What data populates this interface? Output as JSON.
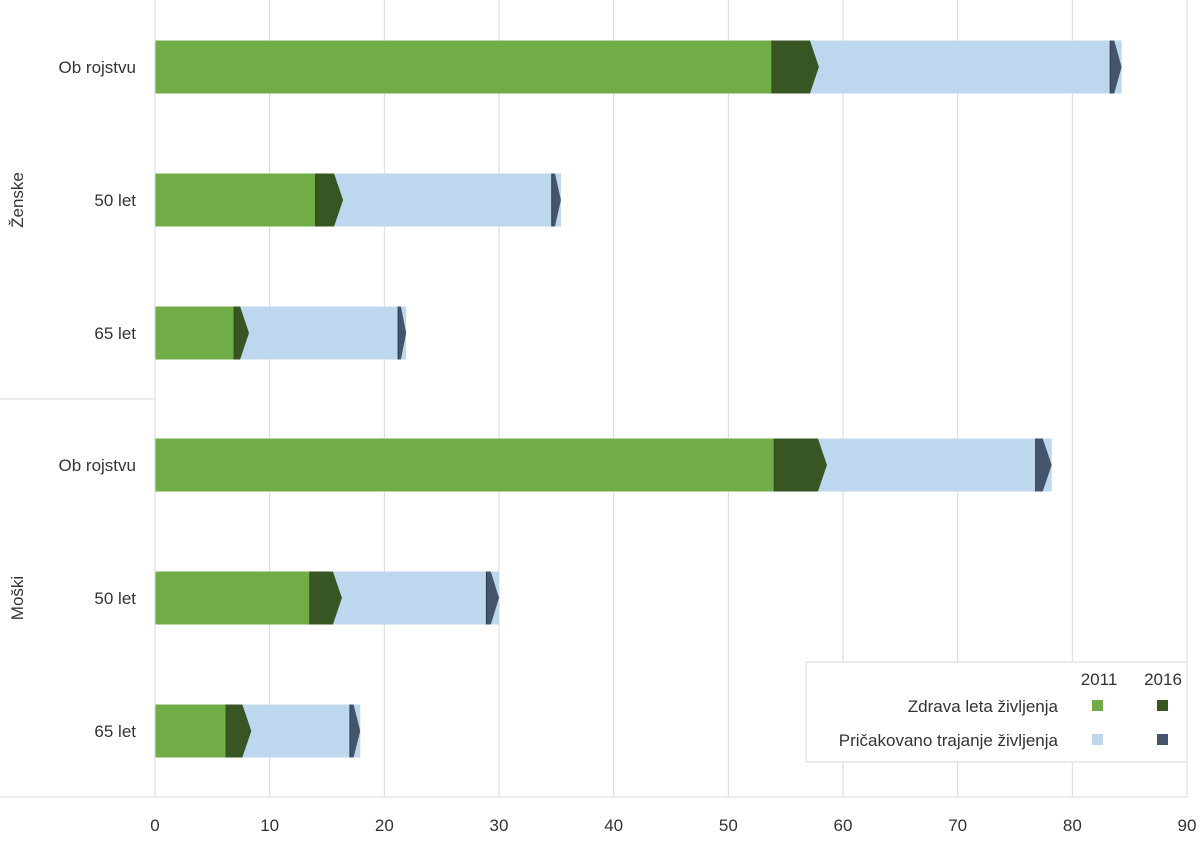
{
  "chart_data": {
    "type": "bar",
    "orientation": "horizontal",
    "stacked_overlay": true,
    "xlim": [
      0,
      90
    ],
    "x_ticks": [
      "0",
      "10",
      "20",
      "30",
      "40",
      "50",
      "60",
      "70",
      "80",
      "90"
    ],
    "grid": true,
    "groups": [
      {
        "label": "Ženske",
        "categories": [
          "Ob rojstvu",
          "50 let",
          "65 let"
        ]
      },
      {
        "label": "Moški",
        "categories": [
          "Ob rojstvu",
          "50 let",
          "65 let"
        ]
      }
    ],
    "rows": [
      {
        "group": "Ženske",
        "category": "Ob rojstvu",
        "healthy_2011": 53.8,
        "healthy_2016": 57.9,
        "life_2011": 83.3,
        "life_2016": 84.3
      },
      {
        "group": "Ženske",
        "category": "50 let",
        "healthy_2011": 14.0,
        "healthy_2016": 16.4,
        "life_2011": 34.6,
        "life_2016": 35.4
      },
      {
        "group": "Ženske",
        "category": "65 let",
        "healthy_2011": 6.9,
        "healthy_2016": 8.2,
        "life_2011": 21.2,
        "life_2016": 21.9
      },
      {
        "group": "Moški",
        "category": "Ob rojstvu",
        "healthy_2011": 54.0,
        "healthy_2016": 58.6,
        "life_2011": 76.8,
        "life_2016": 78.2
      },
      {
        "group": "Moški",
        "category": "50 let",
        "healthy_2011": 13.5,
        "healthy_2016": 16.3,
        "life_2011": 28.9,
        "life_2016": 30.0
      },
      {
        "group": "Moški",
        "category": "65 let",
        "healthy_2011": 6.2,
        "healthy_2016": 8.4,
        "life_2011": 17.0,
        "life_2016": 17.9
      }
    ],
    "legend": {
      "placement": "bottom-right",
      "columns": [
        "2011",
        "2016"
      ],
      "entries": [
        {
          "label": "Zdrava leta življenja",
          "color_2011": "#70ad47",
          "color_2016": "#375623"
        },
        {
          "label": "Pričakovano trajanje življenja",
          "color_2011": "#bdd7ee",
          "color_2016": "#44546a"
        }
      ]
    },
    "colors": {
      "healthy_2011": "#70ad47",
      "healthy_2016": "#375623",
      "life_2011": "#bdd7ee",
      "life_2016": "#44546a",
      "grid": "#d9d9d9",
      "axis_text": "#333333"
    }
  }
}
